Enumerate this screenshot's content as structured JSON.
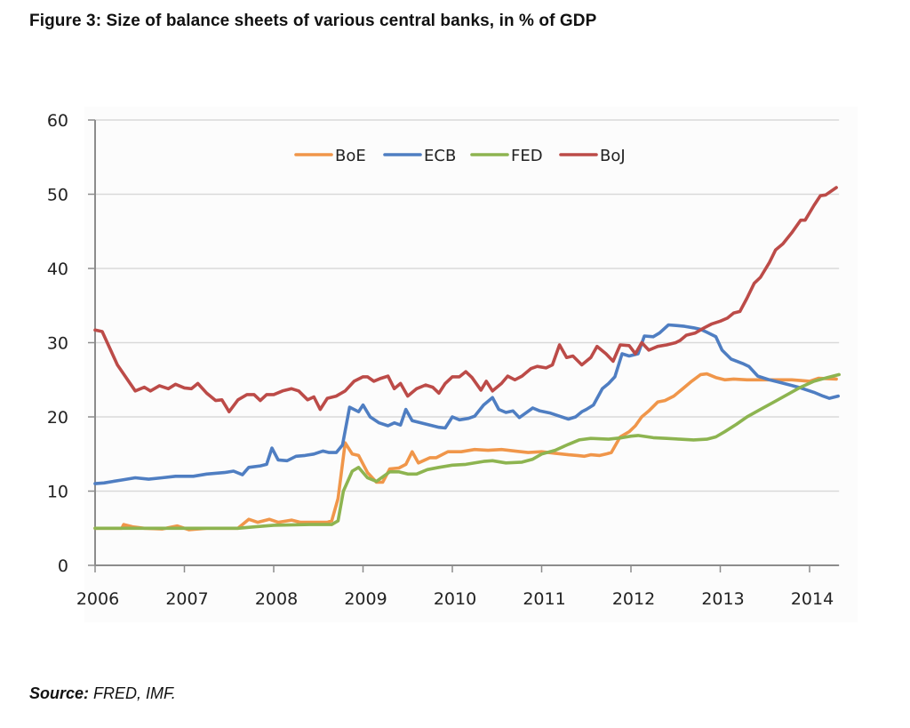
{
  "figure": {
    "title": "Figure 3: Size of balance sheets of various central banks, in % of GDP",
    "source_label": "Source:",
    "source_text": " FRED, IMF."
  },
  "chart_data": {
    "type": "line",
    "title": "Figure 3: Size of balance sheets of various central banks, in % of GDP",
    "xlabel": "",
    "ylabel": "",
    "xlim": [
      2006,
      2014.33
    ],
    "ylim": [
      0,
      60
    ],
    "x_ticks": [
      2006,
      2007,
      2008,
      2009,
      2010,
      2011,
      2012,
      2013,
      2014
    ],
    "x_tick_labels": [
      "2006",
      "2007",
      "2008",
      "2009",
      "2010",
      "2011",
      "2012",
      "2013",
      "2014"
    ],
    "y_ticks": [
      0,
      10,
      20,
      30,
      40,
      50,
      60
    ],
    "y_tick_labels": [
      "0",
      "10",
      "20",
      "30",
      "40",
      "50",
      "60"
    ],
    "grid": "horizontal",
    "legend_position": "top-center",
    "series": [
      {
        "name": "BoE",
        "color": "#F0964A",
        "x": [
          2006.0,
          2006.3,
          2006.32,
          2006.42,
          2006.55,
          2006.75,
          2006.92,
          2007.05,
          2007.25,
          2007.6,
          2007.72,
          2007.82,
          2007.95,
          2008.05,
          2008.2,
          2008.3,
          2008.6,
          2008.65,
          2008.72,
          2008.8,
          2008.88,
          2008.95,
          2009.05,
          2009.15,
          2009.22,
          2009.3,
          2009.4,
          2009.48,
          2009.55,
          2009.62,
          2009.75,
          2009.82,
          2009.95,
          2010.1,
          2010.25,
          2010.4,
          2010.55,
          2010.7,
          2010.85,
          2011.0,
          2011.15,
          2011.3,
          2011.4,
          2011.48,
          2011.55,
          2011.65,
          2011.72,
          2011.78,
          2011.88,
          2011.98,
          2012.05,
          2012.12,
          2012.2,
          2012.3,
          2012.38,
          2012.48,
          2012.58,
          2012.68,
          2012.78,
          2012.85,
          2012.95,
          2013.05,
          2013.15,
          2013.3,
          2013.6,
          2013.8,
          2013.9,
          2014.0,
          2014.1,
          2014.3
        ],
        "y": [
          5,
          5,
          5.5,
          5.2,
          5,
          4.9,
          5.3,
          4.8,
          5,
          5,
          6.2,
          5.8,
          6.2,
          5.8,
          6.1,
          5.8,
          5.8,
          6,
          9,
          16.5,
          15,
          14.8,
          12.5,
          11.2,
          11.2,
          13,
          13.1,
          13.6,
          15.3,
          13.8,
          14.5,
          14.5,
          15.3,
          15.3,
          15.6,
          15.5,
          15.6,
          15.4,
          15.2,
          15.3,
          15.1,
          14.9,
          14.8,
          14.7,
          14.9,
          14.8,
          15,
          15.2,
          17.3,
          18,
          18.8,
          20,
          20.8,
          22,
          22.2,
          22.8,
          23.8,
          24.8,
          25.7,
          25.8,
          25.3,
          25,
          25.1,
          25,
          25,
          25,
          24.9,
          24.8,
          25.2,
          25.1
        ]
      },
      {
        "name": "ECB",
        "color": "#4F7EC2",
        "x": [
          2006.0,
          2006.1,
          2006.2,
          2006.3,
          2006.45,
          2006.6,
          2006.75,
          2006.9,
          2007.1,
          2007.25,
          2007.45,
          2007.55,
          2007.65,
          2007.72,
          2007.85,
          2007.92,
          2007.98,
          2008.05,
          2008.15,
          2008.25,
          2008.35,
          2008.45,
          2008.55,
          2008.62,
          2008.7,
          2008.77,
          2008.85,
          2008.95,
          2009.0,
          2009.08,
          2009.18,
          2009.28,
          2009.35,
          2009.42,
          2009.48,
          2009.55,
          2009.65,
          2009.75,
          2009.85,
          2009.92,
          2010.0,
          2010.08,
          2010.18,
          2010.25,
          2010.35,
          2010.45,
          2010.52,
          2010.6,
          2010.68,
          2010.75,
          2010.82,
          2010.9,
          2010.98,
          2011.1,
          2011.2,
          2011.3,
          2011.38,
          2011.45,
          2011.5,
          2011.58,
          2011.68,
          2011.75,
          2011.82,
          2011.9,
          2011.98,
          2012.08,
          2012.15,
          2012.25,
          2012.32,
          2012.42,
          2012.52,
          2012.6,
          2012.7,
          2012.78,
          2012.85,
          2012.95,
          2013.02,
          2013.12,
          2013.25,
          2013.32,
          2013.42,
          2013.55,
          2013.65,
          2013.78,
          2013.9,
          2014.05,
          2014.15,
          2014.22,
          2014.32
        ],
        "y": [
          11,
          11.1,
          11.3,
          11.5,
          11.8,
          11.6,
          11.8,
          12,
          12,
          12.3,
          12.5,
          12.7,
          12.2,
          13.2,
          13.4,
          13.6,
          15.8,
          14.2,
          14.1,
          14.7,
          14.8,
          15,
          15.4,
          15.2,
          15.2,
          16.2,
          21.3,
          20.7,
          21.6,
          20,
          19.2,
          18.8,
          19.2,
          18.9,
          21,
          19.5,
          19.2,
          18.9,
          18.6,
          18.5,
          20,
          19.6,
          19.8,
          20.1,
          21.6,
          22.6,
          21,
          20.6,
          20.8,
          19.9,
          20.5,
          21.2,
          20.8,
          20.5,
          20.1,
          19.7,
          20,
          20.7,
          21,
          21.6,
          23.8,
          24.5,
          25.4,
          28.5,
          28.2,
          28.5,
          30.9,
          30.8,
          31.3,
          32.4,
          32.3,
          32.2,
          32,
          31.8,
          31.4,
          30.8,
          29,
          27.8,
          27.2,
          26.8,
          25.5,
          25,
          24.7,
          24.3,
          23.9,
          23.3,
          22.8,
          22.5,
          22.8
        ]
      },
      {
        "name": "FED",
        "color": "#8DB450",
        "x": [
          2006.0,
          2007.6,
          2007.8,
          2008.0,
          2008.4,
          2008.65,
          2008.72,
          2008.78,
          2008.88,
          2008.95,
          2009.05,
          2009.15,
          2009.3,
          2009.4,
          2009.5,
          2009.6,
          2009.72,
          2009.85,
          2010.0,
          2010.15,
          2010.35,
          2010.45,
          2010.6,
          2010.78,
          2010.9,
          2011.0,
          2011.15,
          2011.3,
          2011.42,
          2011.55,
          2011.75,
          2011.9,
          2012.0,
          2012.08,
          2012.25,
          2012.4,
          2012.55,
          2012.7,
          2012.85,
          2012.95,
          2013.05,
          2013.18,
          2013.3,
          2013.45,
          2013.6,
          2013.75,
          2013.9,
          2014.05,
          2014.2,
          2014.33
        ],
        "y": [
          5,
          5,
          5.2,
          5.4,
          5.5,
          5.5,
          6,
          10,
          12.7,
          13.2,
          11.8,
          11.3,
          12.6,
          12.6,
          12.3,
          12.3,
          12.9,
          13.2,
          13.5,
          13.6,
          14,
          14.1,
          13.8,
          13.9,
          14.3,
          15,
          15.5,
          16.3,
          16.9,
          17.1,
          17,
          17.2,
          17.4,
          17.5,
          17.2,
          17.1,
          17,
          16.9,
          17,
          17.3,
          18,
          19,
          20,
          21,
          22,
          23,
          24,
          24.8,
          25.3,
          25.7
        ]
      },
      {
        "name": "BoJ",
        "color": "#BC4B48",
        "x": [
          2006.0,
          2006.08,
          2006.25,
          2006.45,
          2006.55,
          2006.62,
          2006.72,
          2006.82,
          2006.9,
          2007.0,
          2007.08,
          2007.15,
          2007.25,
          2007.35,
          2007.42,
          2007.5,
          2007.6,
          2007.7,
          2007.78,
          2007.85,
          2007.92,
          2008.0,
          2008.1,
          2008.2,
          2008.28,
          2008.38,
          2008.45,
          2008.52,
          2008.6,
          2008.7,
          2008.8,
          2008.9,
          2009.0,
          2009.05,
          2009.12,
          2009.2,
          2009.28,
          2009.35,
          2009.42,
          2009.5,
          2009.6,
          2009.7,
          2009.78,
          2009.85,
          2009.92,
          2010.0,
          2010.08,
          2010.15,
          2010.22,
          2010.32,
          2010.38,
          2010.45,
          2010.55,
          2010.62,
          2010.7,
          2010.78,
          2010.88,
          2010.95,
          2011.05,
          2011.12,
          2011.2,
          2011.28,
          2011.35,
          2011.45,
          2011.55,
          2011.62,
          2011.72,
          2011.8,
          2011.88,
          2011.98,
          2012.05,
          2012.12,
          2012.2,
          2012.3,
          2012.4,
          2012.5,
          2012.55,
          2012.62,
          2012.72,
          2012.82,
          2012.9,
          2013.0,
          2013.08,
          2013.15,
          2013.22,
          2013.3,
          2013.38,
          2013.45,
          2013.55,
          2013.62,
          2013.7,
          2013.8,
          2013.9,
          2013.95,
          2014.05,
          2014.12,
          2014.18,
          2014.3
        ],
        "y": [
          31.7,
          31.5,
          27,
          23.5,
          24,
          23.5,
          24.2,
          23.8,
          24.4,
          23.9,
          23.8,
          24.5,
          23.2,
          22.2,
          22.3,
          20.7,
          22.3,
          23,
          23,
          22.2,
          23,
          23,
          23.5,
          23.8,
          23.5,
          22.3,
          22.7,
          21,
          22.5,
          22.8,
          23.5,
          24.8,
          25.4,
          25.4,
          24.8,
          25.2,
          25.5,
          23.8,
          24.5,
          22.8,
          23.8,
          24.3,
          24,
          23.2,
          24.5,
          25.4,
          25.4,
          26.1,
          25.3,
          23.6,
          24.8,
          23.5,
          24.5,
          25.5,
          25,
          25.5,
          26.5,
          26.8,
          26.6,
          27,
          29.7,
          28,
          28.2,
          27,
          28,
          29.5,
          28.5,
          27.5,
          29.7,
          29.6,
          28.5,
          30,
          29,
          29.5,
          29.7,
          30,
          30.3,
          31,
          31.3,
          32,
          32.5,
          32.9,
          33.3,
          34,
          34.2,
          36,
          38,
          38.8,
          40.8,
          42.5,
          43.3,
          44.8,
          46.5,
          46.5,
          48.5,
          49.8,
          49.9,
          50.9
        ]
      }
    ]
  }
}
